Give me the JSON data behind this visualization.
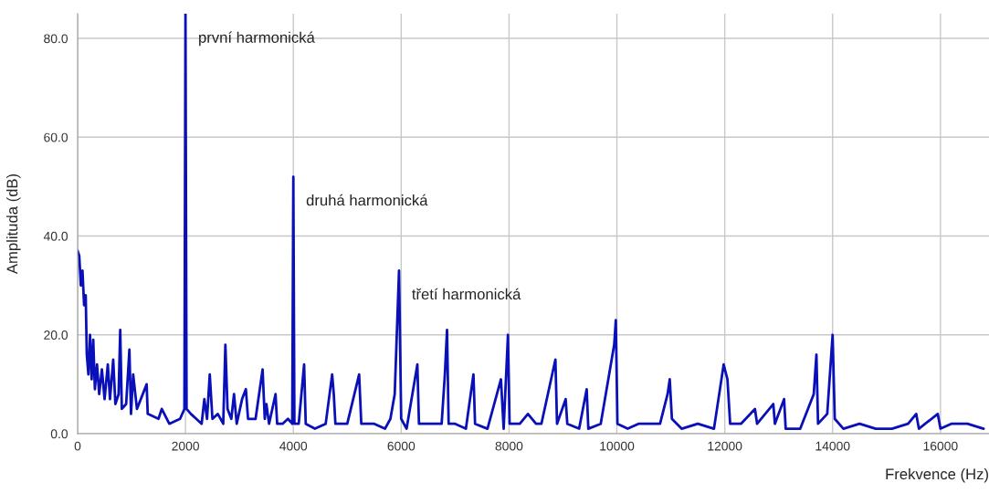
{
  "chart_data": {
    "type": "line",
    "xlabel": "Frekvence (Hz)",
    "ylabel": "Amplituda (dB)",
    "xlim": [
      0,
      16900
    ],
    "ylim": [
      0,
      85
    ],
    "xticks": [
      0,
      2000,
      4000,
      6000,
      8000,
      10000,
      12000,
      14000,
      16000
    ],
    "yticks": [
      {
        "value": 0,
        "label": "0.0"
      },
      {
        "value": 20,
        "label": "20.0"
      },
      {
        "value": 40,
        "label": "40.0"
      },
      {
        "value": 60,
        "label": "60.0"
      },
      {
        "value": 80,
        "label": "80.0"
      }
    ],
    "grid": true,
    "annotations": [
      {
        "text": "první harmonická",
        "x": 2000,
        "y": 85
      },
      {
        "text": "druhá harmonická",
        "x": 4000,
        "y": 52
      },
      {
        "text": "třetí harmonická",
        "x": 5960,
        "y": 33
      }
    ],
    "series": [
      {
        "color": "#0a10b8",
        "x": [
          0,
          30,
          60,
          90,
          120,
          150,
          170,
          200,
          230,
          260,
          290,
          320,
          360,
          400,
          450,
          500,
          560,
          600,
          660,
          700,
          760,
          790,
          820,
          900,
          960,
          990,
          1030,
          1100,
          1280,
          1300,
          1500,
          1560,
          1700,
          1900,
          1980,
          2000,
          2020,
          2100,
          2200,
          2300,
          2350,
          2400,
          2450,
          2500,
          2600,
          2700,
          2740,
          2780,
          2850,
          2900,
          2950,
          3050,
          3120,
          3160,
          3300,
          3430,
          3470,
          3500,
          3550,
          3670,
          3700,
          3800,
          3900,
          3980,
          4000,
          4020,
          4100,
          4200,
          4230,
          4400,
          4600,
          4720,
          4750,
          4780,
          5000,
          5220,
          5260,
          5500,
          5700,
          5800,
          5880,
          5960,
          6000,
          6100,
          6300,
          6330,
          6500,
          6750,
          6810,
          6850,
          6880,
          7000,
          7200,
          7340,
          7370,
          7600,
          7850,
          7900,
          7980,
          8010,
          8200,
          8350,
          8500,
          8600,
          8860,
          8890,
          9050,
          9080,
          9300,
          9440,
          9470,
          9700,
          9950,
          9980,
          10010,
          10200,
          10400,
          10800,
          10940,
          10980,
          11020,
          11200,
          11500,
          11800,
          11980,
          12050,
          12100,
          12300,
          12560,
          12600,
          12900,
          12930,
          13100,
          13130,
          13400,
          13650,
          13700,
          13730,
          13900,
          14000,
          14040,
          14200,
          14500,
          14800,
          15100,
          15400,
          15550,
          15600,
          15950,
          16000,
          16200,
          16500,
          16800
        ],
        "values": [
          37,
          36,
          30,
          33,
          26,
          28,
          16,
          12,
          20,
          11,
          19,
          9,
          14,
          8,
          13,
          7,
          14,
          7,
          15,
          6,
          8,
          21,
          5,
          6,
          17,
          4,
          12,
          5,
          10,
          4,
          3,
          5,
          2,
          3,
          5,
          85,
          5,
          4,
          3,
          2,
          7,
          3,
          12,
          3,
          4,
          2,
          18,
          5,
          3,
          8,
          2,
          7,
          9,
          3,
          3,
          13,
          3,
          6,
          2,
          8,
          2,
          2,
          3,
          2,
          52,
          2,
          2,
          14,
          2,
          1,
          2,
          12,
          8,
          2,
          2,
          12,
          2,
          2,
          1,
          3,
          8,
          33,
          3,
          1,
          14,
          2,
          2,
          2,
          12,
          21,
          2,
          2,
          1,
          12,
          2,
          1,
          11,
          1,
          20,
          2,
          2,
          4,
          2,
          2,
          15,
          2,
          7,
          2,
          1,
          9,
          1,
          2,
          18,
          23,
          2,
          1,
          2,
          2,
          8,
          11,
          3,
          1,
          2,
          1,
          14,
          11,
          2,
          2,
          5,
          2,
          6,
          2,
          7,
          1,
          1,
          8,
          16,
          2,
          4,
          20,
          3,
          1,
          2,
          1,
          1,
          2,
          4,
          1,
          4,
          1,
          2,
          2,
          1
        ]
      }
    ]
  }
}
